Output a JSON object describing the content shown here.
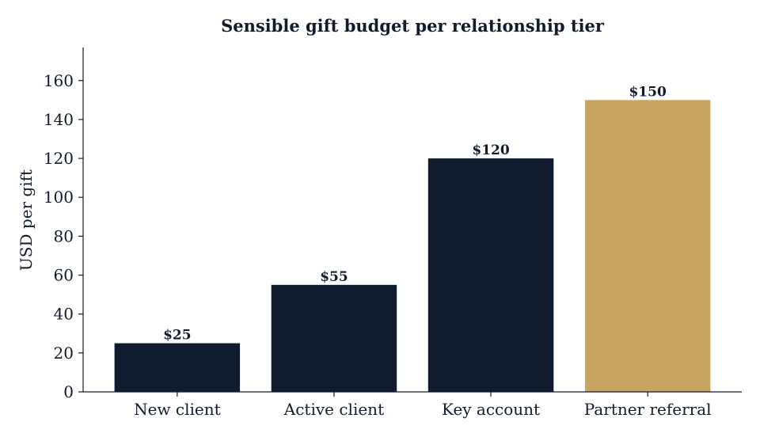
{
  "chart_data": {
    "type": "bar",
    "title": "Sensible gift budget per relationship tier",
    "xlabel": "",
    "ylabel": "USD per gift",
    "categories": [
      "New client",
      "Active client",
      "Key account",
      "Partner referral"
    ],
    "values": [
      25,
      55,
      120,
      150
    ],
    "data_labels": [
      "$25",
      "$55",
      "$120",
      "$150"
    ],
    "ylim": [
      0,
      177
    ],
    "yticks": [
      0,
      20,
      40,
      60,
      80,
      100,
      120,
      140,
      160
    ],
    "bar_colors": [
      "#111b2e",
      "#111b2e",
      "#111b2e",
      "#c8a661"
    ],
    "grid": false,
    "legend": "none"
  }
}
